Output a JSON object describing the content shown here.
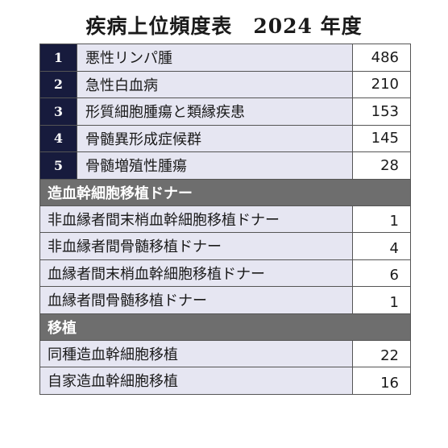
{
  "title": {
    "main": "疾病上位頻度表",
    "year": "2024 年度"
  },
  "ranked": [
    {
      "rank": "1",
      "label": "悪性リンパ腫",
      "value": "486"
    },
    {
      "rank": "2",
      "label": "急性白血病",
      "value": "210"
    },
    {
      "rank": "3",
      "label": "形質細胞腫瘍と類縁疾患",
      "value": "153"
    },
    {
      "rank": "4",
      "label": "骨髄異形成症候群",
      "value": "145"
    },
    {
      "rank": "5",
      "label": "骨髄増殖性腫瘍",
      "value": "28"
    }
  ],
  "donor_section": {
    "header": "造血幹細胞移植ドナー",
    "rows": [
      {
        "label": "非血縁者間末梢血幹細胞移植ドナー",
        "value": "1"
      },
      {
        "label": "非血縁者間骨髄移植ドナー",
        "value": "4"
      },
      {
        "label": "血縁者間末梢血幹細胞移植ドナー",
        "value": "6"
      },
      {
        "label": "血縁者間骨髄移植ドナー",
        "value": "1"
      }
    ]
  },
  "transplant_section": {
    "header": "移植",
    "rows": [
      {
        "label": "同種造血幹細胞移植",
        "value": "22"
      },
      {
        "label": "自家造血幹細胞移植",
        "value": "16"
      }
    ]
  }
}
